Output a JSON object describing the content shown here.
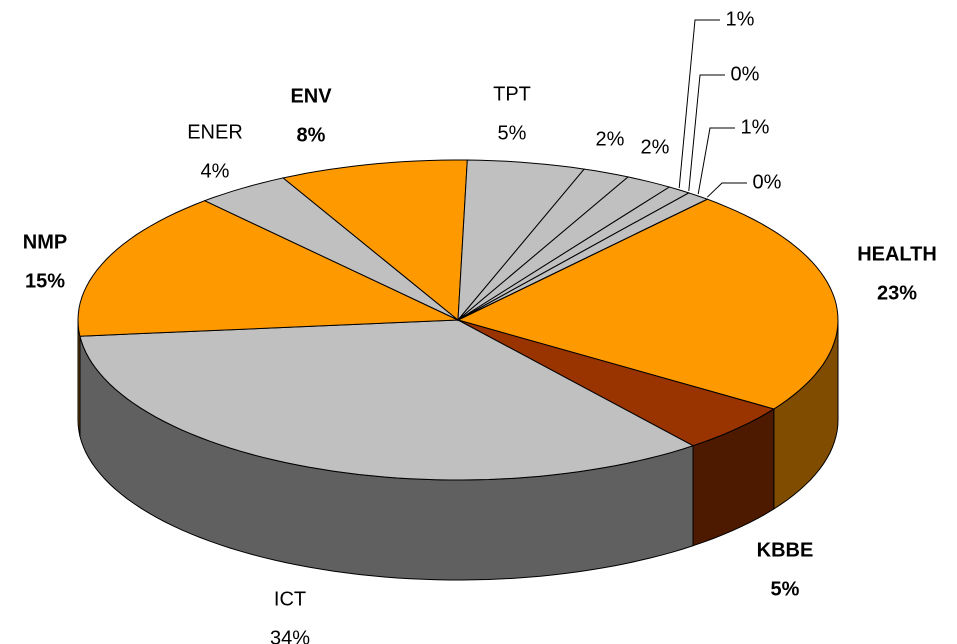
{
  "chart_data": {
    "type": "pie3d",
    "categories": [
      "HEALTH",
      "KBBE",
      "ICT",
      "NMP",
      "ENER",
      "ENV",
      "TPT",
      null,
      null,
      null,
      null,
      null,
      null
    ],
    "values": [
      23,
      5,
      34,
      15,
      4,
      8,
      5,
      2,
      2,
      1,
      0,
      1,
      0
    ],
    "value_labels": [
      "23%",
      "5%",
      "34%",
      "15%",
      "4%",
      "8%",
      "5%",
      "2%",
      "2%",
      "1%",
      "0%",
      "1%",
      "0%"
    ],
    "colors": [
      "#ff9900",
      "#993300",
      "#c0c0c0",
      "#ff9900",
      "#c0c0c0",
      "#ff9900",
      "#c0c0c0",
      "#c0c0c0",
      "#c0c0c0",
      "#c0c0c0",
      "#c0c0c0",
      "#c0c0c0",
      "#c0c0c0"
    ]
  }
}
